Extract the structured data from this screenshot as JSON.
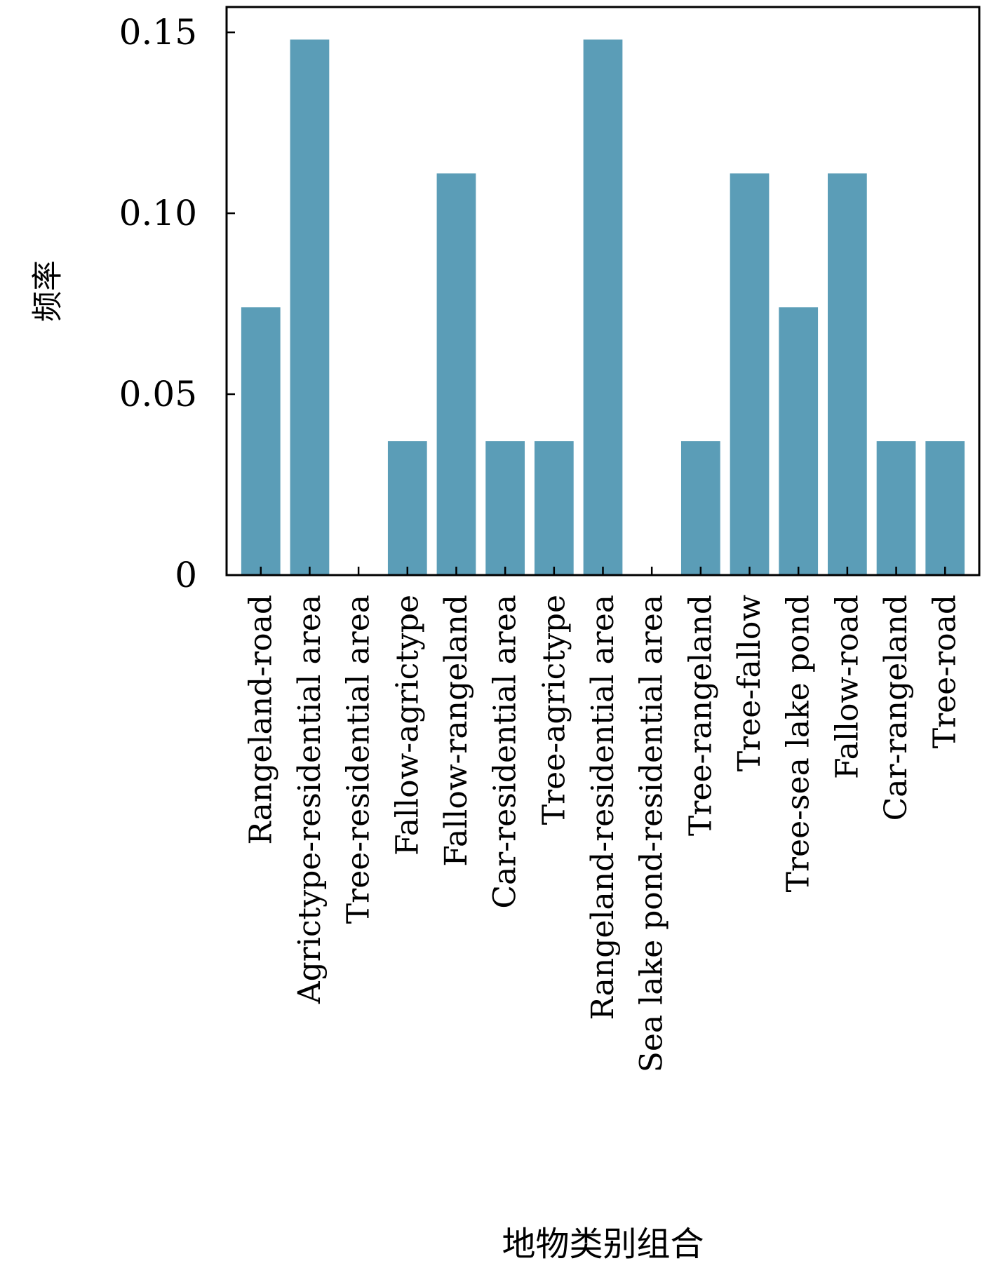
{
  "chart_data": {
    "type": "bar",
    "categories": [
      "Rangeland-road",
      "Agrictype-residential area",
      "Tree-residential area",
      "Fallow-agrictype",
      "Fallow-rangeland",
      "Car-residential area",
      "Tree-agrictype",
      "Rangeland-residential area",
      "Sea lake pond-residential area",
      "Tree-rangeland",
      "Tree-fallow",
      "Tree-sea lake pond",
      "Fallow-road",
      "Car-rangeland",
      "Tree-road"
    ],
    "values": [
      0.074,
      0.148,
      0,
      0.037,
      0.111,
      0.037,
      0.037,
      0.148,
      0,
      0.037,
      0.111,
      0.074,
      0.111,
      0.037,
      0.037
    ],
    "xlabel": "地物类别组合",
    "ylabel": "频率",
    "ylim": [
      0,
      0.157
    ],
    "yticks": [
      0,
      0.05,
      0.1,
      0.15
    ],
    "ytick_labels": [
      "0",
      "0.05",
      "0.10",
      "0.15"
    ],
    "bar_color": "#5b9db7",
    "grid": false,
    "legend": "none"
  }
}
